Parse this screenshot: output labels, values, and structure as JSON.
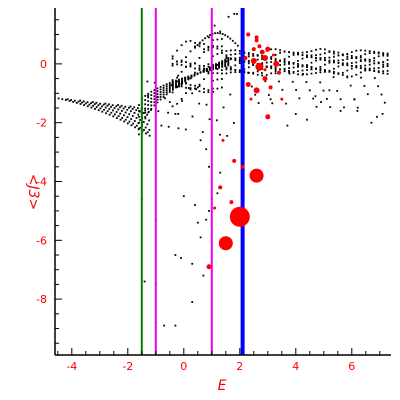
{
  "chart_data": {
    "type": "scatter",
    "title": "",
    "xlabel": "E",
    "ylabel": "<J3>",
    "xlim": [
      -4.6,
      7.4
    ],
    "ylim": [
      -9.9,
      1.9
    ],
    "x_ticks": [
      -4,
      -2,
      0,
      2,
      4,
      6
    ],
    "y_ticks": [
      0,
      -2,
      -4,
      -6,
      -8
    ],
    "grid": false,
    "legend": "none",
    "colors": {
      "axis": "#000000",
      "tick_text": "#ff0000",
      "label_text": "#ff0000",
      "small_points": "#000000",
      "large_points": "#ff0000"
    },
    "vertical_lines": [
      {
        "x": -1.5,
        "color": "#008000",
        "width": 2
      },
      {
        "x": -1.0,
        "color": "#ee00ee",
        "width": 2
      },
      {
        "x": 1.0,
        "color": "#ee00ee",
        "width": 2
      },
      {
        "x": 2.1,
        "color": "#0000ff",
        "width": 4
      }
    ],
    "black_points_isolated": [
      [
        -1.5,
        -4.6
      ],
      [
        -1.4,
        -7.4
      ],
      [
        -1.0,
        -5.3
      ],
      [
        -1.0,
        -7.5
      ],
      [
        -1.0,
        -8.8
      ],
      [
        -0.7,
        -8.9
      ],
      [
        -0.3,
        -8.9
      ],
      [
        -0.3,
        -6.5
      ],
      [
        -0.1,
        -6.6
      ],
      [
        0.3,
        -6.8
      ],
      [
        0.3,
        -8.1
      ],
      [
        0.4,
        -4.8
      ],
      [
        0.0,
        -4.5
      ],
      [
        0.6,
        -5.9
      ],
      [
        0.7,
        -7.2
      ],
      [
        0.8,
        -5.3
      ],
      [
        0.5,
        -5.4
      ],
      [
        0.9,
        -5.0
      ],
      [
        1.0,
        -4.6
      ],
      [
        1.2,
        -4.4
      ],
      [
        1.3,
        -3.7
      ],
      [
        0.9,
        -3.5
      ],
      [
        0.8,
        -2.9
      ],
      [
        0.6,
        -2.6
      ],
      [
        -0.2,
        -0.4
      ],
      [
        -0.5,
        -1.3
      ],
      [
        -0.2,
        -1.7
      ],
      [
        0.3,
        -1.0
      ],
      [
        0.5,
        -0.8
      ],
      [
        1.1,
        1.3
      ],
      [
        1.3,
        1.1
      ],
      [
        0.9,
        0.9
      ],
      [
        1.6,
        1.6
      ],
      [
        1.8,
        1.7
      ],
      [
        1.9,
        1.7
      ],
      [
        3.7,
        -2.1
      ],
      [
        4.0,
        -1.7
      ],
      [
        4.4,
        -1.9
      ],
      [
        4.9,
        -1.3
      ],
      [
        5.6,
        -1.6
      ],
      [
        6.2,
        -1.6
      ],
      [
        6.7,
        -2.0
      ],
      [
        6.9,
        -1.8
      ],
      [
        7.1,
        -1.7
      ],
      [
        3.1,
        -1.2
      ],
      [
        4.7,
        -1.1
      ],
      [
        5.2,
        -0.9
      ],
      [
        6.1,
        -1.2
      ]
    ],
    "red_points": [
      {
        "x": 2.0,
        "y": -5.2,
        "size": 10
      },
      {
        "x": 1.5,
        "y": -6.1,
        "size": 7
      },
      {
        "x": 2.6,
        "y": -3.8,
        "size": 7
      },
      {
        "x": 0.9,
        "y": -6.9,
        "size": 2.5
      },
      {
        "x": 1.4,
        "y": -2.6,
        "size": 1.5
      },
      {
        "x": 1.8,
        "y": -3.3,
        "size": 2
      },
      {
        "x": 2.1,
        "y": -3.5,
        "size": 2
      },
      {
        "x": 1.3,
        "y": -4.2,
        "size": 2
      },
      {
        "x": 1.7,
        "y": -4.7,
        "size": 2
      },
      {
        "x": 1.1,
        "y": -4.9,
        "size": 1.5
      },
      {
        "x": 3.0,
        "y": -1.8,
        "size": 2.5
      },
      {
        "x": 2.6,
        "y": -0.9,
        "size": 3
      },
      {
        "x": 2.3,
        "y": -0.7,
        "size": 2.5
      },
      {
        "x": 2.9,
        "y": -0.5,
        "size": 2.5
      },
      {
        "x": 3.1,
        "y": -0.8,
        "size": 2
      },
      {
        "x": 3.5,
        "y": -1.2,
        "size": 1.5
      },
      {
        "x": 2.5,
        "y": 0.1,
        "size": 3
      },
      {
        "x": 2.7,
        "y": -0.1,
        "size": 4
      },
      {
        "x": 2.9,
        "y": 0.2,
        "size": 3
      },
      {
        "x": 2.2,
        "y": 0.2,
        "size": 2
      },
      {
        "x": 3.3,
        "y": 0.0,
        "size": 3
      },
      {
        "x": 3.4,
        "y": -0.3,
        "size": 2
      },
      {
        "x": 2.8,
        "y": 0.4,
        "size": 2.5
      },
      {
        "x": 3.0,
        "y": 0.5,
        "size": 2.5
      },
      {
        "x": 2.6,
        "y": 0.8,
        "size": 2
      },
      {
        "x": 2.5,
        "y": 0.5,
        "size": 2
      },
      {
        "x": 2.6,
        "y": 0.9,
        "size": 2
      },
      {
        "x": 3.2,
        "y": 0.3,
        "size": 1.5
      },
      {
        "x": 2.4,
        "y": -1.2,
        "size": 1.5
      },
      {
        "x": 2.3,
        "y": 1.0,
        "size": 2
      },
      {
        "x": 2.7,
        "y": 0.6,
        "size": 2
      },
      {
        "x": 2.9,
        "y": -0.2,
        "size": 1.5
      }
    ]
  }
}
